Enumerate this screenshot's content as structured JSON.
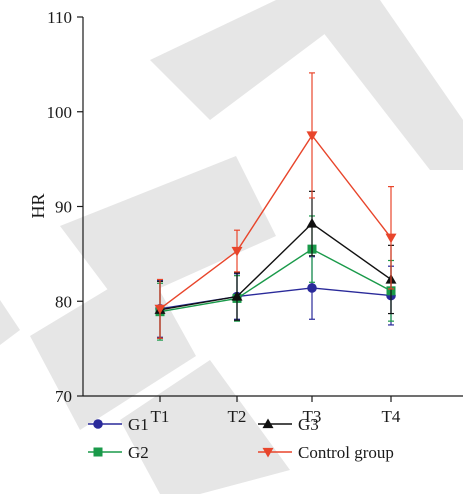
{
  "chart_data": {
    "type": "line",
    "title": "",
    "xlabel": "",
    "ylabel": "HR",
    "categories": [
      "T1",
      "T2",
      "T3",
      "T4"
    ],
    "ylim": [
      70,
      110
    ],
    "yticks": [
      70,
      80,
      90,
      100,
      110
    ],
    "grid": false,
    "legend_position": "bottom",
    "watermark": "RETRACTED",
    "series": [
      {
        "name": "G1",
        "color": "#2a2a9a",
        "marker": "circle",
        "values": [
          79.2,
          80.5,
          81.4,
          80.6
        ],
        "errors": [
          3.0,
          2.4,
          3.3,
          3.1
        ]
      },
      {
        "name": "G2",
        "color": "#1a9a4a",
        "marker": "square",
        "values": [
          78.9,
          80.3,
          85.5,
          81.1
        ],
        "errors": [
          3.0,
          2.4,
          3.5,
          3.2
        ]
      },
      {
        "name": "G3",
        "color": "#111111",
        "marker": "triangle-up",
        "values": [
          79.1,
          80.5,
          88.2,
          82.3
        ],
        "errors": [
          3.0,
          2.5,
          3.4,
          3.6
        ]
      },
      {
        "name": "Control group",
        "color": "#e8452b",
        "marker": "triangle-down",
        "values": [
          79.2,
          85.3,
          97.5,
          86.7
        ],
        "errors": [
          3.1,
          2.2,
          6.6,
          5.4
        ]
      }
    ]
  }
}
